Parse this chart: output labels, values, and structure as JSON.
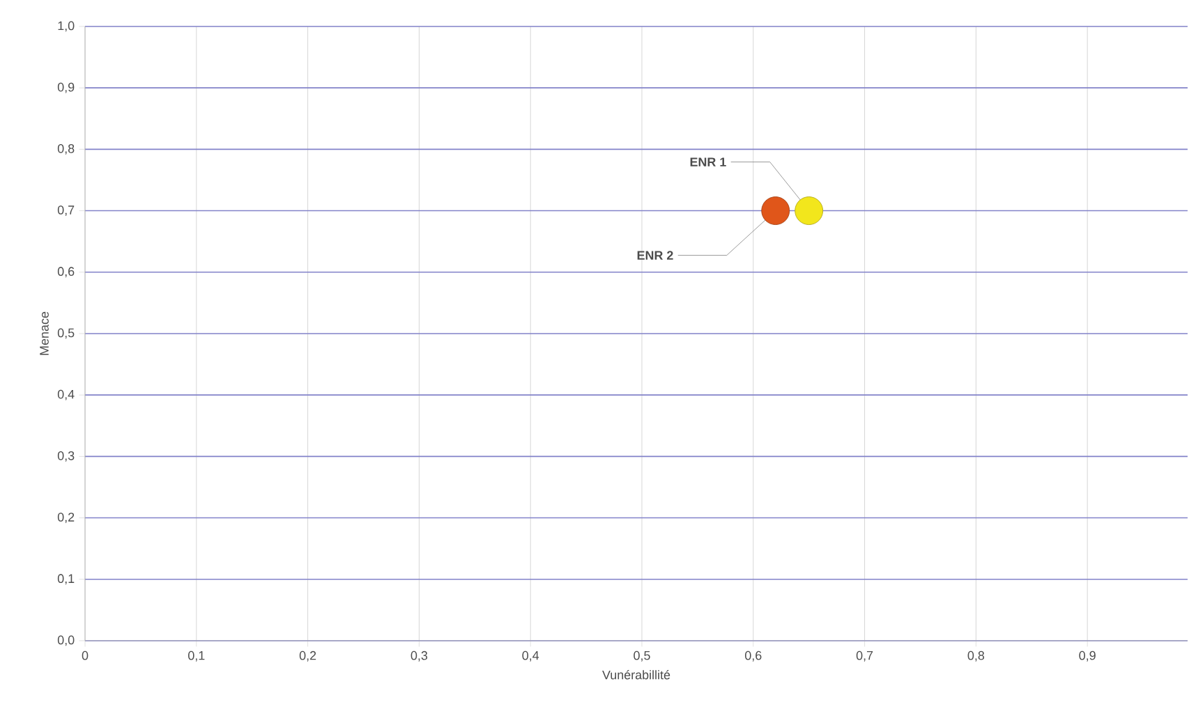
{
  "chart_data": {
    "type": "scatter",
    "xlabel": "Vunérabillité",
    "ylabel": "Menace",
    "xlim": [
      0,
      0.99
    ],
    "ylim": [
      0,
      1
    ],
    "xticks": [
      0,
      {
        "value": 0.1,
        "label": "0,1"
      },
      {
        "value": 0.2,
        "label": "0,2"
      },
      {
        "value": 0.3,
        "label": "0,3"
      },
      {
        "value": 0.4,
        "label": "0,4"
      },
      {
        "value": 0.5,
        "label": "0,5"
      },
      {
        "value": 0.6,
        "label": "0,6"
      },
      {
        "value": 0.7,
        "label": "0,7"
      },
      {
        "value": 0.8,
        "label": "0,8"
      },
      {
        "value": 0.9,
        "label": "0,9"
      }
    ],
    "yticks": [
      {
        "value": 0,
        "label": "0,0"
      },
      {
        "value": 0.1,
        "label": "0,1"
      },
      {
        "value": 0.2,
        "label": "0,2"
      },
      {
        "value": 0.3,
        "label": "0,3"
      },
      {
        "value": 0.4,
        "label": "0,4"
      },
      {
        "value": 0.5,
        "label": "0,5"
      },
      {
        "value": 0.6,
        "label": "0,6"
      },
      {
        "value": 0.7,
        "label": "0,7"
      },
      {
        "value": 0.8,
        "label": "0,8"
      },
      {
        "value": 0.9,
        "label": "0,9"
      },
      {
        "value": 1,
        "label": "1,0"
      }
    ],
    "grid": true,
    "series": [
      {
        "name": "ENR 1",
        "color": "#f2e61c",
        "x": [
          0.65
        ],
        "values": [
          0.7
        ]
      },
      {
        "name": "ENR 2",
        "color": "#e0561a",
        "x": [
          0.62
        ],
        "values": [
          0.7
        ]
      }
    ]
  }
}
